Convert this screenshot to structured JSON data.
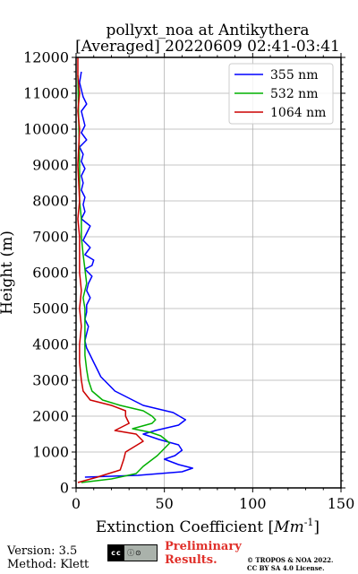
{
  "chart_data": {
    "type": "line",
    "title": "pollyxt_noa at Antikythera",
    "subtitle": "[Averaged] 20220609 02:41-03:41",
    "xlabel": "Extinction Coefficient [",
    "xlabel_unit": "Mm",
    "xlabel_exp": "-1",
    "xlabel_close": "]",
    "ylabel": "Height (m)",
    "xlim": [
      0,
      150
    ],
    "ylim": [
      0,
      12000
    ],
    "xticks": [
      0,
      50,
      100,
      150
    ],
    "yticks": [
      0,
      1000,
      2000,
      3000,
      4000,
      5000,
      6000,
      7000,
      8000,
      9000,
      10000,
      11000,
      12000
    ],
    "grid": true,
    "legend_position": "top-right",
    "series": [
      {
        "name": "355 nm",
        "color": "#0000ff",
        "x": [
          5,
          35,
          60,
          66,
          58,
          50,
          56,
          60,
          58,
          47,
          38,
          45,
          58,
          62,
          55,
          38,
          30,
          22,
          18,
          14,
          12,
          10,
          8,
          6,
          5,
          6,
          7,
          5,
          6,
          6,
          8,
          6,
          7,
          9,
          5,
          9,
          10,
          5,
          8,
          4,
          6,
          8,
          3,
          5,
          4,
          5,
          3,
          4,
          3,
          5,
          3,
          4,
          2,
          6,
          3,
          5,
          4,
          3,
          6,
          4,
          3,
          2,
          3
        ],
        "y": [
          300,
          350,
          450,
          550,
          650,
          800,
          900,
          1050,
          1200,
          1350,
          1500,
          1600,
          1750,
          1900,
          2100,
          2300,
          2500,
          2700,
          2900,
          3100,
          3300,
          3500,
          3700,
          3900,
          4100,
          4300,
          4500,
          4700,
          4900,
          5100,
          5300,
          5500,
          5700,
          5900,
          6100,
          6200,
          6350,
          6500,
          6700,
          6900,
          7100,
          7300,
          7500,
          7700,
          7900,
          8100,
          8300,
          8500,
          8700,
          8900,
          9100,
          9300,
          9500,
          9700,
          9900,
          10100,
          10300,
          10500,
          10700,
          10900,
          11100,
          11300,
          11600
        ]
      },
      {
        "name": "532 nm",
        "color": "#00b000",
        "x": [
          3,
          20,
          34,
          38,
          46,
          53,
          48,
          42,
          32,
          43,
          45,
          43,
          38,
          25,
          15,
          9,
          7,
          6,
          5,
          5,
          5,
          5,
          4,
          6,
          5,
          4,
          3,
          3,
          2,
          2,
          1
        ],
        "y": [
          150,
          250,
          400,
          600,
          900,
          1250,
          1450,
          1550,
          1650,
          1800,
          1900,
          2000,
          2150,
          2300,
          2450,
          2700,
          3000,
          3300,
          3700,
          4200,
          4700,
          5000,
          5300,
          5700,
          6100,
          6500,
          7000,
          7500,
          8000,
          9000,
          11500
        ]
      },
      {
        "name": "1064 nm",
        "color": "#cc0000",
        "x": [
          1,
          12,
          25,
          27,
          28,
          38,
          34,
          22,
          30,
          28,
          28,
          20,
          8,
          4,
          3,
          2,
          2,
          3,
          2,
          3,
          2,
          2,
          1,
          2,
          1,
          2,
          1,
          2,
          1,
          1
        ],
        "y": [
          150,
          300,
          500,
          800,
          1000,
          1300,
          1500,
          1600,
          1800,
          2000,
          2150,
          2300,
          2450,
          2700,
          3000,
          3500,
          4000,
          4500,
          5000,
          5500,
          6000,
          7000,
          7500,
          8000,
          9000,
          10000,
          10500,
          11000,
          11500,
          12000
        ]
      }
    ]
  },
  "footer": {
    "version": "Version: 3.5",
    "method": "Method: Klett",
    "cc_license_mark": "BY SA",
    "preliminary_line1": "Preliminary",
    "preliminary_line2": "Results.",
    "copyright_line1": "© TROPOS & NOA 2022.",
    "copyright_line2": "CC BY SA 4.0 License."
  }
}
